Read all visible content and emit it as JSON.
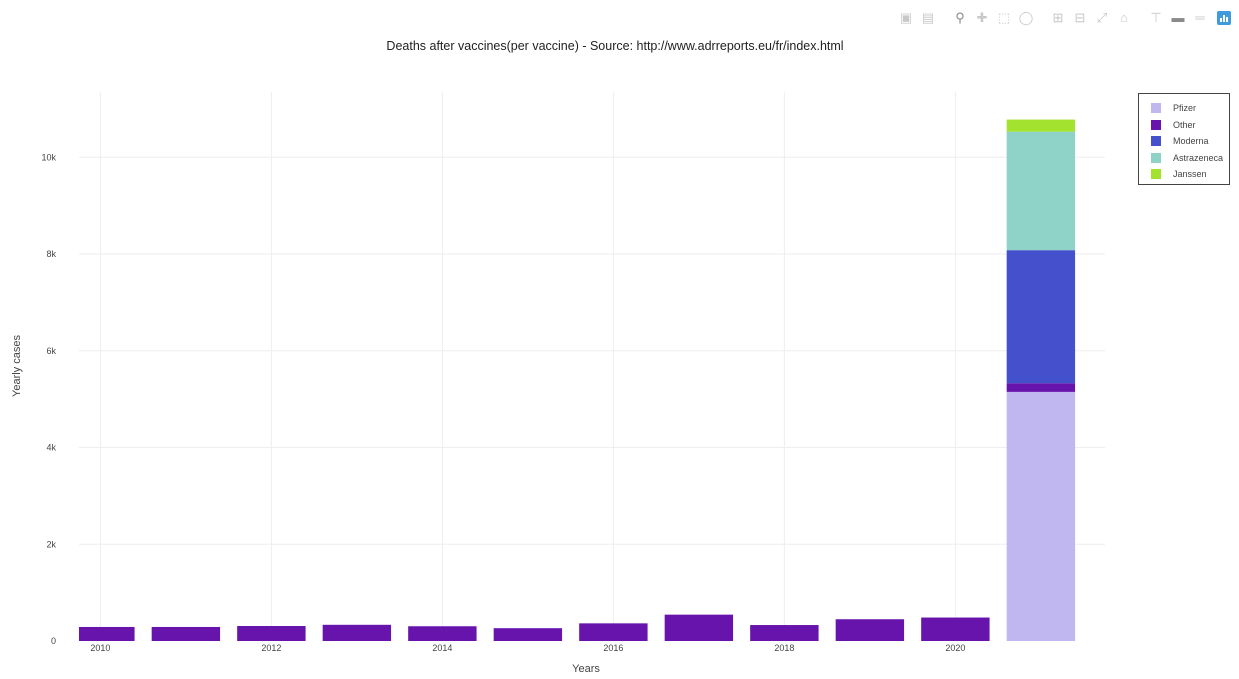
{
  "title": "Deaths after vaccines(per vaccine) - Source: http://www.adrreports.eu/fr/index.html",
  "modebar": {
    "icons": [
      "camera-icon",
      "save-icon",
      "zoom-icon",
      "pan-icon",
      "box-select-icon",
      "lasso-select-icon",
      "zoom-in-icon",
      "zoom-out-icon",
      "autoscale-icon",
      "reset-axes-icon",
      "spike-lines-icon",
      "hover-closest-icon",
      "hover-compare-icon",
      "plotly-logo-icon"
    ]
  },
  "chart_data": {
    "type": "bar",
    "barmode": "stack",
    "title": "Deaths after vaccines(per vaccine) - Source: http://www.adrreports.eu/fr/index.html",
    "xlabel": "Years",
    "ylabel": "Yearly cases",
    "x": [
      2010,
      2011,
      2012,
      2013,
      2014,
      2015,
      2016,
      2017,
      2018,
      2019,
      2020,
      2021
    ],
    "xlim": [
      2009.75,
      2021.75
    ],
    "ylim": [
      0,
      11350
    ],
    "xticks": [
      {
        "value": 2010,
        "label": "2010"
      },
      {
        "value": 2012,
        "label": "2012"
      },
      {
        "value": 2014,
        "label": "2014"
      },
      {
        "value": 2016,
        "label": "2016"
      },
      {
        "value": 2018,
        "label": "2018"
      },
      {
        "value": 2020,
        "label": "2020"
      }
    ],
    "yticks": [
      {
        "value": 0,
        "label": "0"
      },
      {
        "value": 2000,
        "label": "2k"
      },
      {
        "value": 4000,
        "label": "4k"
      },
      {
        "value": 6000,
        "label": "6k"
      },
      {
        "value": 8000,
        "label": "8k"
      },
      {
        "value": 10000,
        "label": "10k"
      }
    ],
    "grid": true,
    "legend_position": "top-right",
    "series": [
      {
        "name": "Pfizer",
        "color": "#c0b7f0",
        "values": [
          0,
          0,
          0,
          0,
          0,
          0,
          0,
          0,
          0,
          0,
          0,
          5150
        ]
      },
      {
        "name": "Other",
        "color": "#6614ac",
        "values": [
          290,
          290,
          310,
          335,
          305,
          265,
          365,
          545,
          330,
          450,
          485,
          180
        ]
      },
      {
        "name": "Moderna",
        "color": "#4450cc",
        "values": [
          0,
          0,
          0,
          0,
          0,
          0,
          0,
          0,
          0,
          0,
          0,
          2750
        ]
      },
      {
        "name": "Astrazeneca",
        "color": "#8fd3c8",
        "values": [
          0,
          0,
          0,
          0,
          0,
          0,
          0,
          0,
          0,
          0,
          0,
          2450
        ]
      },
      {
        "name": "Janssen",
        "color": "#a3e22e",
        "values": [
          0,
          0,
          0,
          0,
          0,
          0,
          0,
          0,
          0,
          0,
          0,
          250
        ]
      }
    ]
  }
}
